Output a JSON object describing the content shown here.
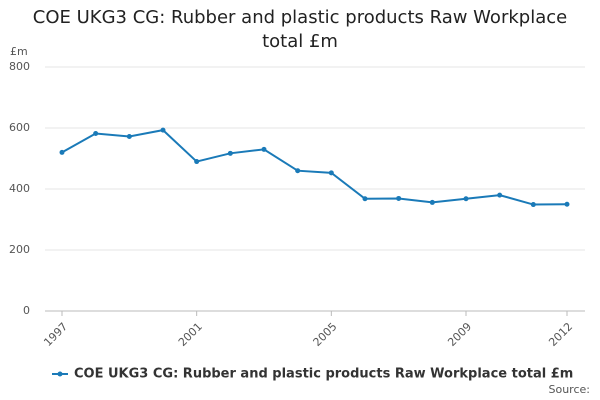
{
  "chart_data": {
    "type": "line",
    "title": "COE UKG3 CG: Rubber and plastic products Raw Workplace total £m",
    "y_unit_label": "£m",
    "source_label": "Source:",
    "x": [
      1997,
      1998,
      1999,
      2000,
      2001,
      2002,
      2003,
      2004,
      2005,
      2006,
      2007,
      2008,
      2009,
      2010,
      2011,
      2012
    ],
    "series": [
      {
        "name": "COE UKG3 CG: Rubber and plastic products Raw Workplace total £m",
        "color": "#1a7ab8",
        "values": [
          520,
          582,
          572,
          593,
          490,
          517,
          530,
          460,
          453,
          368,
          369,
          356,
          368,
          380,
          349,
          350
        ]
      }
    ],
    "xlim": [
      1997,
      2012
    ],
    "xticks": [
      1997,
      2001,
      2005,
      2009,
      2012
    ],
    "ylim": [
      0,
      800
    ],
    "yticks": [
      0,
      200,
      400,
      600,
      800
    ],
    "grid": true
  }
}
